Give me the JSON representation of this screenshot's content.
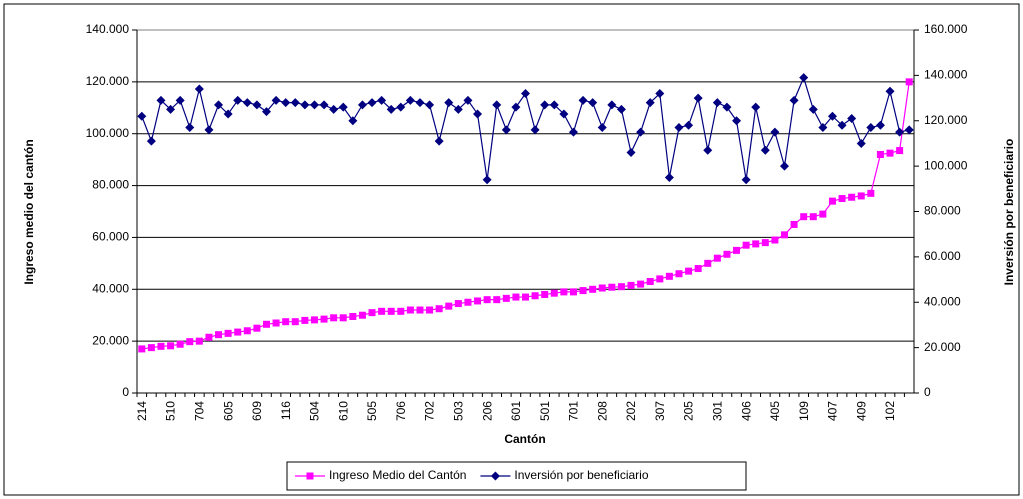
{
  "chart_data": {
    "type": "line",
    "x_label": "Cantón",
    "y_label": "Ingreso medio del cantón",
    "y2_label": "Inversión por beneficiario",
    "categories": [
      "214",
      null,
      null,
      "510",
      null,
      null,
      "704",
      null,
      null,
      "605",
      null,
      null,
      "609",
      null,
      null,
      "116",
      null,
      null,
      "504",
      null,
      null,
      "610",
      null,
      null,
      "505",
      null,
      null,
      "706",
      null,
      null,
      "702",
      null,
      null,
      "503",
      null,
      null,
      "206",
      null,
      null,
      "601",
      null,
      null,
      "501",
      null,
      null,
      "701",
      null,
      null,
      "208",
      null,
      null,
      "202",
      null,
      null,
      "307",
      null,
      null,
      "205",
      null,
      null,
      "301",
      null,
      null,
      "406",
      null,
      null,
      "405",
      null,
      null,
      "109",
      null,
      null,
      "407",
      null,
      null,
      "409",
      null,
      null,
      "102",
      null,
      null
    ],
    "series": [
      {
        "name": "Ingreso Medio del Cantón",
        "color": "#ff00ff",
        "marker": "square",
        "values": [
          17000,
          17500,
          18000,
          18200,
          18800,
          19800,
          20000,
          21500,
          22500,
          23000,
          23500,
          24000,
          25000,
          26500,
          27000,
          27500,
          27500,
          28000,
          28200,
          28500,
          29000,
          29000,
          29500,
          30000,
          31000,
          31500,
          31500,
          31500,
          32000,
          32000,
          32000,
          32500,
          33500,
          34500,
          35000,
          35500,
          36000,
          36000,
          36500,
          37000,
          37000,
          37500,
          38000,
          38500,
          39000,
          39000,
          39500,
          40000,
          40500,
          40800,
          41000,
          41500,
          42000,
          43000,
          44000,
          45000,
          46000,
          47000,
          48000,
          50000,
          52000,
          53500,
          55000,
          57000,
          57500,
          58000,
          59000,
          61000,
          65000,
          68000,
          68000,
          69000,
          74000,
          75000,
          75500,
          76000,
          77000,
          92000,
          92500,
          93500,
          120000
        ]
      },
      {
        "name": "Inversión por beneficiario",
        "color": "#000080",
        "marker": "diamond",
        "axis": "y2",
        "values": [
          122000,
          111000,
          129000,
          125000,
          129000,
          117000,
          134000,
          116000,
          127000,
          123000,
          129000,
          128000,
          127000,
          124000,
          129000,
          128000,
          128000,
          127000,
          127000,
          127000,
          125000,
          126000,
          120000,
          127000,
          128000,
          129000,
          125000,
          126000,
          129000,
          128000,
          127000,
          111000,
          128000,
          125000,
          129000,
          123000,
          94000,
          127000,
          116000,
          126000,
          132000,
          116000,
          127000,
          127000,
          123000,
          115000,
          129000,
          128000,
          117000,
          127000,
          125000,
          106000,
          115000,
          128000,
          132000,
          95000,
          117000,
          118000,
          130000,
          107000,
          128000,
          126000,
          120000,
          94000,
          126000,
          107000,
          115000,
          100000,
          129000,
          139000,
          125000,
          117000,
          122000,
          118000,
          121000,
          110000,
          117000,
          118000,
          133000,
          115000,
          116000
        ]
      }
    ],
    "ylim": [
      0,
      140000
    ],
    "yticks": [
      0,
      {
        "value": 20000,
        "label": "20.000"
      },
      {
        "value": 40000,
        "label": "40.000"
      },
      {
        "value": 60000,
        "label": "60.000"
      },
      {
        "value": 80000,
        "label": "80.000"
      },
      {
        "value": 100000,
        "label": "100.000"
      },
      {
        "value": 120000,
        "label": "120.000"
      },
      {
        "value": 140000,
        "label": "140.000"
      }
    ],
    "y2lim": [
      0,
      160000
    ],
    "y2ticks": [
      0,
      {
        "value": 20000,
        "label": "20.000"
      },
      {
        "value": 40000,
        "label": "40.000"
      },
      {
        "value": 60000,
        "label": "60.000"
      },
      {
        "value": 80000,
        "label": "80.000"
      },
      {
        "value": 100000,
        "label": "100.000"
      },
      {
        "value": 120000,
        "label": "120.000"
      },
      {
        "value": 140000,
        "label": "140.000"
      },
      {
        "value": 160000,
        "label": "160.000"
      }
    ],
    "grid": true,
    "legend": "bottom"
  }
}
